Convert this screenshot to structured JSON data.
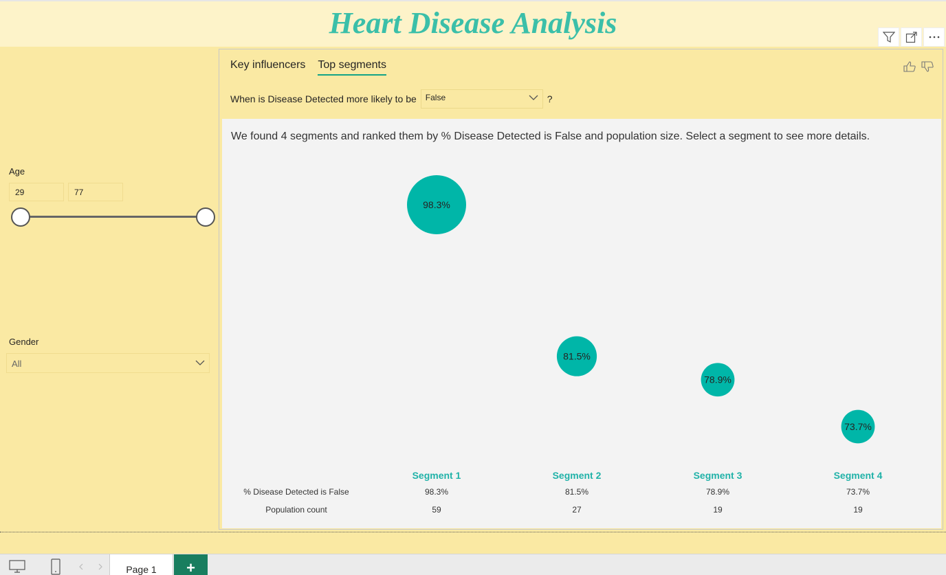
{
  "report": {
    "title": "Heart Disease Analysis"
  },
  "visual_header": {
    "icons": [
      "filter-icon",
      "focus-mode-icon",
      "more-options-icon"
    ]
  },
  "slicers": {
    "age": {
      "label": "Age",
      "min": "29",
      "max": "77"
    },
    "gender": {
      "label": "Gender",
      "value": "All"
    }
  },
  "visual": {
    "tabs": [
      {
        "label": "Key influencers",
        "active": false
      },
      {
        "label": "Top segments",
        "active": true
      }
    ],
    "question_prefix": "When is Disease Detected more likely to be",
    "question_value": "False",
    "question_suffix": "?",
    "summary": "We found 4 segments and ranked them by % Disease Detected is False and population size. Select a segment to see more details."
  },
  "chart_data": {
    "type": "scatter",
    "title": "",
    "categories": [
      "Segment 1",
      "Segment 2",
      "Segment 3",
      "Segment 4"
    ],
    "values": [
      98.3,
      81.5,
      78.9,
      73.7
    ],
    "value_labels": [
      "98.3%",
      "81.5%",
      "78.9%",
      "73.7%"
    ],
    "population": [
      59,
      27,
      19,
      19
    ],
    "population_labels": [
      "59",
      "27",
      "19",
      "19"
    ],
    "row_labels": [
      "% Disease Detected is False",
      "Population count"
    ],
    "color": "#00b6a8",
    "ylim": [
      73.7,
      98.3
    ]
  },
  "status_bar": {
    "page_tab": "Page 1",
    "add_label": "+"
  },
  "colors": {
    "accent": "#3bbfa9",
    "bubble": "#00b6a8",
    "background": "#fae9a3"
  }
}
